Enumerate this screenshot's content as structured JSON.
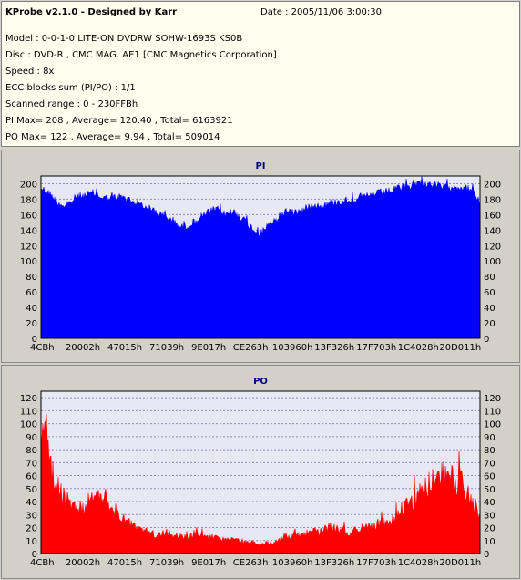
{
  "header": {
    "title": "KProbe v2.1.0 - Designed by Karr",
    "date": "Date : 2005/11/06 3:00:30",
    "lines": [
      "Model : 0-0-1-0 LITE-ON DVDRW SOHW-1693S KS0B",
      "Disc : DVD-R , CMC MAG. AE1 [CMC Magnetics Corporation]",
      "Speed : 8x",
      "ECC blocks sum (PI/PO) : 1/1",
      "Scanned range : 0 - 230FFBh",
      "PI Max= 208 , Average= 120.40 , Total= 6163921",
      "PO Max= 122 , Average= 9.94 , Total= 509014"
    ]
  },
  "chart_data": [
    {
      "type": "area",
      "title": "PI",
      "color": "#0000ff",
      "ylim": [
        0,
        210
      ],
      "yticks": [
        0,
        20,
        40,
        60,
        80,
        100,
        120,
        140,
        160,
        180,
        200
      ],
      "xticks": [
        "4CBh",
        "20002h",
        "47015h",
        "71039h",
        "9E017h",
        "CE263h",
        "103960h",
        "13F326h",
        "17F703h",
        "1C4028h",
        "20D011h"
      ],
      "grid": true,
      "x": [
        0,
        0.02,
        0.04,
        0.06,
        0.08,
        0.1,
        0.12,
        0.14,
        0.16,
        0.18,
        0.2,
        0.22,
        0.24,
        0.26,
        0.28,
        0.3,
        0.32,
        0.34,
        0.36,
        0.38,
        0.4,
        0.42,
        0.44,
        0.46,
        0.48,
        0.5,
        0.52,
        0.54,
        0.56,
        0.58,
        0.6,
        0.62,
        0.64,
        0.66,
        0.68,
        0.7,
        0.72,
        0.74,
        0.76,
        0.78,
        0.8,
        0.82,
        0.84,
        0.86,
        0.88,
        0.9,
        0.92,
        0.94,
        0.96,
        0.98,
        1.0
      ],
      "values": [
        200,
        192,
        180,
        175,
        188,
        190,
        193,
        187,
        186,
        188,
        184,
        180,
        174,
        170,
        162,
        158,
        148,
        152,
        160,
        168,
        172,
        165,
        168,
        160,
        148,
        140,
        150,
        160,
        170,
        168,
        172,
        178,
        176,
        180,
        182,
        184,
        186,
        188,
        192,
        194,
        196,
        200,
        202,
        206,
        204,
        203,
        200,
        202,
        200,
        198,
        180
      ]
    },
    {
      "type": "area",
      "title": "PO",
      "color": "#ff0000",
      "ylim": [
        0,
        125
      ],
      "yticks": [
        0,
        10,
        20,
        30,
        40,
        50,
        60,
        70,
        80,
        90,
        100,
        110,
        120
      ],
      "xticks": [
        "4CBh",
        "20002h",
        "47015h",
        "71039h",
        "9E017h",
        "CE263h",
        "103960h",
        "13F326h",
        "17F703h",
        "1C4028h",
        "20D011h"
      ],
      "grid": true,
      "x": [
        0,
        0.01,
        0.02,
        0.04,
        0.06,
        0.08,
        0.1,
        0.12,
        0.14,
        0.16,
        0.18,
        0.2,
        0.22,
        0.24,
        0.26,
        0.28,
        0.3,
        0.32,
        0.34,
        0.36,
        0.38,
        0.4,
        0.42,
        0.44,
        0.46,
        0.48,
        0.5,
        0.52,
        0.54,
        0.56,
        0.58,
        0.6,
        0.62,
        0.64,
        0.66,
        0.68,
        0.7,
        0.72,
        0.74,
        0.76,
        0.78,
        0.8,
        0.82,
        0.84,
        0.86,
        0.88,
        0.9,
        0.92,
        0.94,
        0.96,
        0.98,
        1.0
      ],
      "values": [
        120,
        105,
        85,
        60,
        48,
        40,
        45,
        50,
        55,
        42,
        35,
        28,
        24,
        20,
        18,
        20,
        17,
        15,
        16,
        18,
        14,
        15,
        12,
        13,
        10,
        11,
        9,
        10,
        12,
        14,
        16,
        18,
        20,
        22,
        24,
        22,
        20,
        22,
        24,
        26,
        28,
        32,
        38,
        46,
        55,
        62,
        68,
        72,
        70,
        65,
        55,
        30
      ]
    }
  ]
}
